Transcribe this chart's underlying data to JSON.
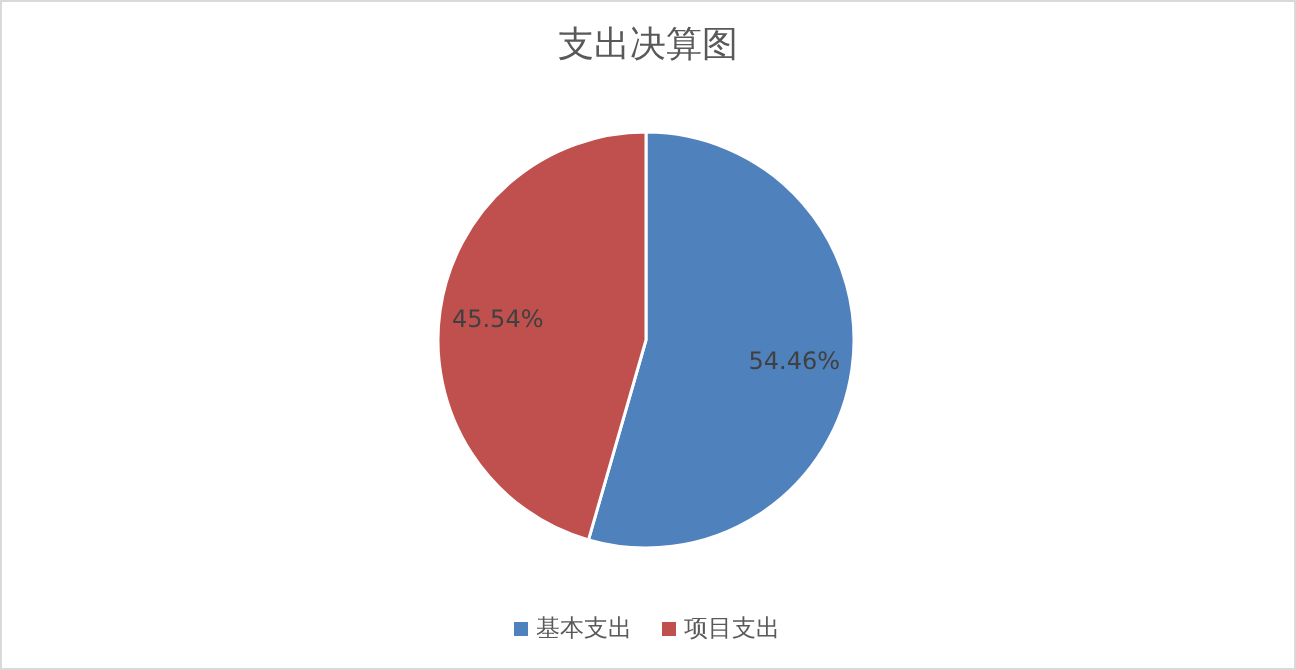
{
  "chart_data": {
    "type": "pie",
    "title": "支出决算图",
    "categories": [
      "基本支出",
      "项目支出"
    ],
    "values": [
      54.46,
      45.54
    ],
    "colors": [
      "#4f81bd",
      "#c0504d"
    ],
    "value_labels": [
      "54.46%",
      "45.54%"
    ],
    "legend": "bottom"
  }
}
